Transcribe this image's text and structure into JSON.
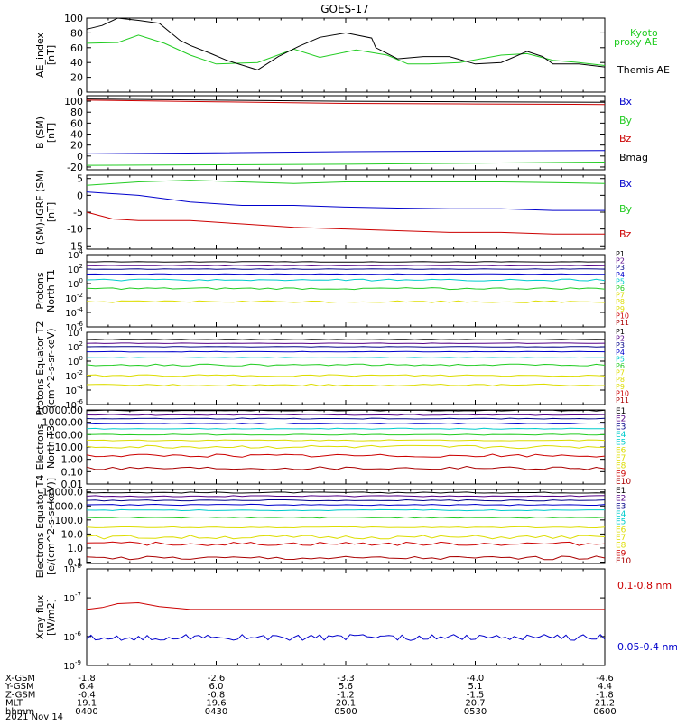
{
  "title": "GOES-17",
  "date_label": "2021 Nov 14",
  "colors": {
    "black": "#000000",
    "blue": "#0000cc",
    "green": "#22cc22",
    "red": "#cc0000",
    "darkred": "#aa0000",
    "yellow": "#dddd00",
    "cyan": "#00cccc",
    "navy": "#000088",
    "purple": "#550088"
  },
  "orbit_table": {
    "rows": [
      {
        "label": "X-GSM",
        "values": [
          "-1.8",
          "-2.6",
          "-3.3",
          "-4.0",
          "-4.6"
        ]
      },
      {
        "label": "Y-GSM",
        "values": [
          "6.4",
          "6.0",
          "5.6",
          "5.1",
          "4.4"
        ]
      },
      {
        "label": "Z-GSM",
        "values": [
          "-0.4",
          "-0.8",
          "-1.2",
          "-1.5",
          "-1.8"
        ]
      },
      {
        "label": "MLT",
        "values": [
          "19.1",
          "19.6",
          "20.1",
          "20.7",
          "21.2"
        ]
      },
      {
        "label": "hhmm",
        "values": [
          "0400",
          "0430",
          "0500",
          "0530",
          "0600"
        ]
      }
    ]
  },
  "chart_data": [
    {
      "type": "line",
      "ylabel": "AE_index [nT]",
      "ylim": [
        0,
        100
      ],
      "yticks": [
        "0",
        "20",
        "40",
        "60",
        "80",
        "100"
      ],
      "legend": [
        "Kyoto proxy AE",
        "Themis AE"
      ],
      "series": [
        {
          "name": "Kyoto proxy AE",
          "color": "green",
          "x": [
            0,
            6,
            10,
            15,
            20,
            25,
            33,
            40,
            45,
            52,
            58,
            62,
            66,
            72,
            80,
            85,
            90,
            95,
            100
          ],
          "y": [
            66,
            67,
            77,
            66,
            50,
            38,
            40,
            58,
            47,
            57,
            50,
            38,
            38,
            40,
            50,
            52,
            43,
            40,
            36
          ]
        },
        {
          "name": "Themis AE",
          "color": "black",
          "x": [
            0,
            3,
            6,
            10,
            14,
            18,
            20,
            24,
            27,
            33,
            37,
            41,
            45,
            50,
            55,
            55.8,
            60,
            65,
            70,
            75,
            80,
            85,
            88,
            90,
            95,
            100
          ],
          "y": [
            85,
            90,
            102,
            97,
            93,
            70,
            63,
            52,
            43,
            30,
            48,
            62,
            74,
            80,
            73,
            60,
            45,
            48,
            48,
            38,
            40,
            55,
            48,
            38,
            38,
            34
          ]
        }
      ]
    },
    {
      "type": "line",
      "ylabel": "B (SM) [nT]",
      "ylim": [
        -25,
        110
      ],
      "yticks": [
        "-20",
        "0",
        "20",
        "40",
        "60",
        "80",
        "100"
      ],
      "legend": [
        "Bx",
        "By",
        "Bz",
        "Bmag"
      ],
      "series": [
        {
          "name": "Bmag",
          "color": "black",
          "x": [
            0,
            25,
            50,
            75,
            100
          ],
          "y": [
            104,
            102,
            100,
            99,
            98
          ]
        },
        {
          "name": "Bz",
          "color": "red",
          "x": [
            0,
            25,
            50,
            75,
            100
          ],
          "y": [
            102,
            99,
            96,
            95,
            94
          ]
        },
        {
          "name": "Bx",
          "color": "blue",
          "x": [
            0,
            25,
            50,
            75,
            100
          ],
          "y": [
            4,
            6,
            8,
            9,
            10
          ]
        },
        {
          "name": "By",
          "color": "green",
          "x": [
            0,
            25,
            50,
            75,
            100
          ],
          "y": [
            -17,
            -16,
            -15,
            -13,
            -11
          ]
        }
      ]
    },
    {
      "type": "line",
      "ylabel": "B (SM)-IGRF (SM) [nT]",
      "ylim": [
        -16,
        6
      ],
      "yticks": [
        "-15",
        "-10",
        "-5",
        "0",
        "5"
      ],
      "legend": [
        "Bx",
        "By",
        "Bz"
      ],
      "series": [
        {
          "name": "By",
          "color": "green",
          "x": [
            0,
            10,
            20,
            30,
            40,
            50,
            60,
            70,
            80,
            90,
            100
          ],
          "y": [
            3,
            4,
            4.5,
            4,
            3.5,
            4,
            4,
            4,
            4,
            3.8,
            3.5
          ]
        },
        {
          "name": "Bx",
          "color": "blue",
          "x": [
            0,
            10,
            20,
            30,
            40,
            50,
            60,
            70,
            80,
            90,
            100
          ],
          "y": [
            1,
            0,
            -2,
            -3,
            -3,
            -3.5,
            -3.8,
            -4,
            -4,
            -4.5,
            -4.5
          ]
        },
        {
          "name": "Bz",
          "color": "red",
          "x": [
            0,
            5,
            10,
            20,
            30,
            40,
            50,
            60,
            70,
            80,
            90,
            100
          ],
          "y": [
            -5,
            -7,
            -7.5,
            -7.5,
            -8.5,
            -9.5,
            -10,
            -10.5,
            -11,
            -11,
            -11.5,
            -11.5
          ]
        }
      ]
    },
    {
      "type": "line",
      "ylabel": "Protons North T1",
      "yscale": "log",
      "ylim": [
        1e-06,
        10000
      ],
      "yticks": [
        {
          "v": 10000,
          "mant": "10",
          "exp": "4"
        },
        {
          "v": 100,
          "mant": "10",
          "exp": "2"
        },
        {
          "v": 1,
          "mant": "10",
          "exp": "0"
        },
        {
          "v": 0.01,
          "mant": "10",
          "exp": "-2"
        },
        {
          "v": 0.0001,
          "mant": "10",
          "exp": "-4"
        },
        {
          "v": 1e-06,
          "mant": "10",
          "exp": "-6"
        }
      ],
      "legend": [
        "P1",
        "P2",
        "P3",
        "P4",
        "P5",
        "P6",
        "P7",
        "P8",
        "P9",
        "P10",
        "P11"
      ],
      "series": [
        {
          "name": "P1",
          "color": "black",
          "level": 1000
        },
        {
          "name": "P2",
          "color": "purple",
          "level": 300
        },
        {
          "name": "P3",
          "color": "navy",
          "level": 100
        },
        {
          "name": "P4",
          "color": "blue",
          "level": 20
        },
        {
          "name": "P5",
          "color": "cyan",
          "level": 3
        },
        {
          "name": "P6",
          "color": "green",
          "level": 0.2
        },
        {
          "name": "P7",
          "color": "yellow",
          "level": 0.003
        }
      ]
    },
    {
      "type": "line",
      "ylabel": "Protons Equator T2 (cm^2-s-sr-keV)",
      "yscale": "log",
      "ylim": [
        1e-06,
        10000
      ],
      "yticks": [
        {
          "v": 10000,
          "mant": "10",
          "exp": "4"
        },
        {
          "v": 100,
          "mant": "10",
          "exp": "2"
        },
        {
          "v": 1,
          "mant": "10",
          "exp": "0"
        },
        {
          "v": 0.01,
          "mant": "10",
          "exp": "-2"
        },
        {
          "v": 0.0001,
          "mant": "10",
          "exp": "-4"
        },
        {
          "v": 1e-06,
          "mant": "10",
          "exp": "-6"
        }
      ],
      "legend": [
        "P1",
        "P2",
        "P3",
        "P4",
        "P5",
        "P6",
        "P7",
        "P8",
        "P9",
        "P10",
        "P11"
      ],
      "series": [
        {
          "name": "P1",
          "color": "black",
          "level": 1000
        },
        {
          "name": "P2",
          "color": "purple",
          "level": 300
        },
        {
          "name": "P3",
          "color": "navy",
          "level": 100
        },
        {
          "name": "P4",
          "color": "blue",
          "level": 20
        },
        {
          "name": "P5",
          "color": "cyan",
          "level": 3
        },
        {
          "name": "P6",
          "color": "green",
          "level": 0.3
        },
        {
          "name": "P7",
          "color": "yellow",
          "level": 0.01
        },
        {
          "name": "P8",
          "color": "yellow",
          "level": 0.0005
        }
      ]
    },
    {
      "type": "line",
      "ylabel": "Electrons North T3",
      "yscale": "log",
      "ylim": [
        0.01,
        10000
      ],
      "yticks": [
        {
          "v": 10000,
          "label": "10000.00"
        },
        {
          "v": 1000,
          "label": "1000.00"
        },
        {
          "v": 100,
          "label": "100.00"
        },
        {
          "v": 10,
          "label": "10.00"
        },
        {
          "v": 1,
          "label": "1.00"
        },
        {
          "v": 0.1,
          "label": "0.10"
        },
        {
          "v": 0.01,
          "label": "0.01"
        }
      ],
      "legend": [
        "E1",
        "E2",
        "E3",
        "E4",
        "E5",
        "E6",
        "E7",
        "E8",
        "E9",
        "E10"
      ],
      "series": [
        {
          "name": "E1",
          "color": "black",
          "level": 9000
        },
        {
          "name": "E2",
          "color": "purple",
          "level": 4000
        },
        {
          "name": "E3",
          "color": "navy",
          "level": 2000
        },
        {
          "name": "E4",
          "color": "blue",
          "level": 800
        },
        {
          "name": "E5",
          "color": "cyan",
          "level": 300
        },
        {
          "name": "E6",
          "color": "green",
          "level": 100
        },
        {
          "name": "E7",
          "color": "yellow",
          "level": 35
        },
        {
          "name": "E8",
          "color": "yellow",
          "level": 10
        },
        {
          "name": "E9",
          "color": "red",
          "level": 2
        },
        {
          "name": "E10",
          "color": "darkred",
          "level": 0.2
        }
      ]
    },
    {
      "type": "line",
      "ylabel": "Electrons Equator T4 [e/(cm^2-s-sr-keV)]",
      "yscale": "log",
      "ylim": [
        0.08,
        15000
      ],
      "yticks": [
        {
          "v": 10000,
          "label": "10000.0"
        },
        {
          "v": 1000,
          "label": "1000.0"
        },
        {
          "v": 100,
          "label": "100.0"
        },
        {
          "v": 10,
          "label": "10.0"
        },
        {
          "v": 1,
          "label": "1.0"
        },
        {
          "v": 0.1,
          "label": "0.1"
        }
      ],
      "legend": [
        "E1",
        "E2",
        "E3",
        "E4",
        "E5",
        "E6",
        "E7",
        "E8",
        "E9",
        "E10"
      ],
      "series": [
        {
          "name": "E1",
          "color": "black",
          "level": 9000
        },
        {
          "name": "E2",
          "color": "purple",
          "level": 5000
        },
        {
          "name": "E3",
          "color": "navy",
          "level": 2500
        },
        {
          "name": "E4",
          "color": "blue",
          "level": 1200
        },
        {
          "name": "E5",
          "color": "cyan",
          "level": 500
        },
        {
          "name": "E6",
          "color": "green",
          "level": 150
        },
        {
          "name": "E7",
          "color": "yellow",
          "level": 30
        },
        {
          "name": "E8",
          "color": "yellow",
          "level": 6
        },
        {
          "name": "E9",
          "color": "red",
          "level": 2
        },
        {
          "name": "E10",
          "color": "darkred",
          "level": 0.2
        }
      ]
    },
    {
      "type": "line",
      "ylabel": "Xray flux [W/m2]",
      "yscale": "log",
      "ylim": [
        1e-09,
        1e-08
      ],
      "yticks": [
        {
          "v": 1e-08,
          "mant": "10",
          "exp": "-8"
        },
        {
          "v": 1e-07,
          "mant": "10",
          "exp": "-7"
        },
        {
          "v": 1e-06,
          "mant": "10",
          "exp": "-6"
        },
        {
          "v": 1e-09,
          "mant": "10",
          "exp": "-9"
        }
      ],
      "tick_override": [
        {
          "mant": "10",
          "exp": "-8",
          "frac": 0.0
        },
        {
          "mant": "10",
          "exp": "-7",
          "frac": 0.3
        },
        {
          "mant": "10",
          "exp": "-6",
          "frac": 0.7
        },
        {
          "mant": "10",
          "exp": "-9",
          "frac": 1.0
        }
      ],
      "legend": [
        "0.1-0.8 nm",
        "0.05-0.4 nm"
      ],
      "series": [
        {
          "name": "0.1-0.8 nm",
          "color": "red",
          "frac_x": [
            0,
            3,
            6,
            10,
            14,
            20,
            40,
            60,
            80,
            100
          ],
          "frac_y": [
            0.42,
            0.4,
            0.36,
            0.35,
            0.39,
            0.42,
            0.42,
            0.42,
            0.42,
            0.42
          ]
        },
        {
          "name": "0.05-0.4 nm",
          "color": "blue",
          "noise": true,
          "base": 0.71
        }
      ]
    }
  ],
  "x_axis": {
    "tick_labels": [
      "0400",
      "0430",
      "0500",
      "0530",
      "0600"
    ]
  }
}
